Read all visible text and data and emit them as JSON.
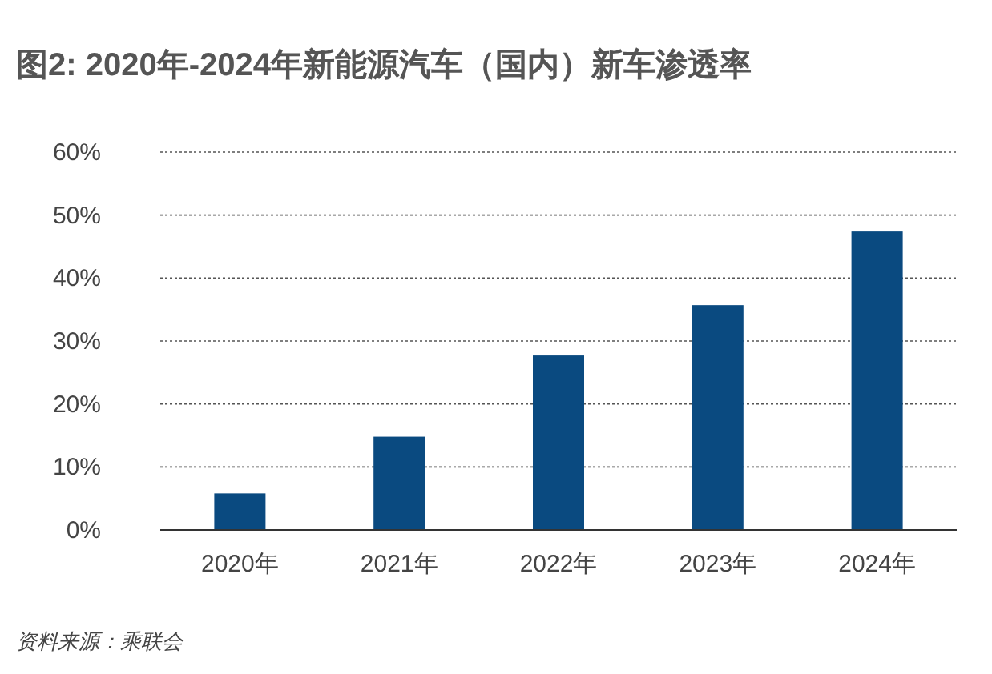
{
  "chart_data": {
    "type": "bar",
    "title": "图2: 2020年-2024年新能源汽车（国内）新车渗透率",
    "categories": [
      "2020年",
      "2021年",
      "2022年",
      "2023年",
      "2024年"
    ],
    "values": [
      5.8,
      14.8,
      27.7,
      35.7,
      47.4
    ],
    "color": "#0a4a80",
    "ylim": [
      0,
      60
    ],
    "yticks": [
      {
        "value": 0,
        "label": "0%"
      },
      {
        "value": 10,
        "label": "10%"
      },
      {
        "value": 20,
        "label": "20%"
      },
      {
        "value": 30,
        "label": "30%"
      },
      {
        "value": 40,
        "label": "40%"
      },
      {
        "value": 50,
        "label": "50%"
      },
      {
        "value": 60,
        "label": "60%"
      }
    ],
    "grid": "y",
    "annotations": [
      "资料来源：乘联会"
    ]
  }
}
